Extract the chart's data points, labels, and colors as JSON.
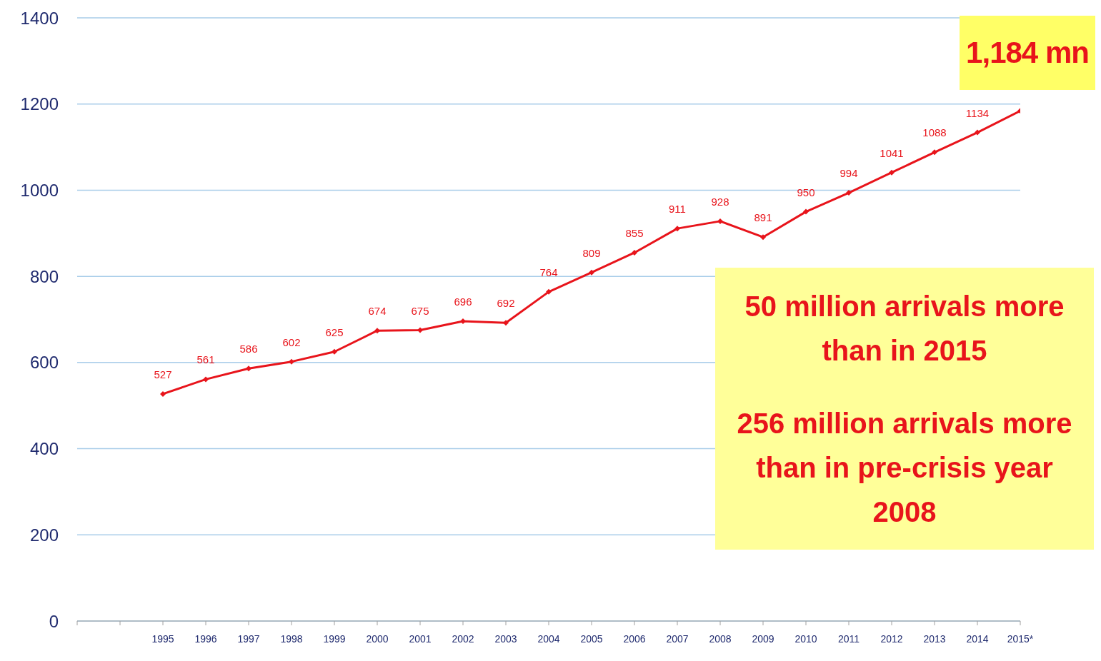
{
  "chart_data": {
    "type": "line",
    "categories": [
      null,
      null,
      "1995",
      "1996",
      "1997",
      "1998",
      "1999",
      "2000",
      "2001",
      "2002",
      "2003",
      "2004",
      "2005",
      "2006",
      "2007",
      "2008",
      "2009",
      "2010",
      "2011",
      "2012",
      "2013",
      "2014",
      "2015*"
    ],
    "series": [
      {
        "color": "#e8141b",
        "values": [
          null,
          null,
          527,
          561,
          586,
          602,
          625,
          674,
          675,
          696,
          692,
          764,
          809,
          855,
          911,
          928,
          891,
          950,
          994,
          1041,
          1088,
          1134,
          1184
        ],
        "value_labels": [
          null,
          null,
          "527",
          "561",
          "586",
          "602",
          "625",
          "674",
          "675",
          "696",
          "692",
          "764",
          "809",
          "855",
          "911",
          "928",
          "891",
          "950",
          "994",
          "1041",
          "1088",
          "1134",
          null
        ]
      }
    ],
    "ylim": [
      0,
      1400
    ],
    "yticks": [
      0,
      200,
      400,
      600,
      800,
      1000,
      1200,
      1400
    ],
    "grid": "y",
    "marker": "diamond",
    "legend": false,
    "annotations": [
      {
        "text": "1,184 mn",
        "x": "2015*",
        "y": 1184
      },
      "50 million arrivals more than in 2015",
      "256 million arrivals more than in pre-crisis year 2008"
    ]
  }
}
